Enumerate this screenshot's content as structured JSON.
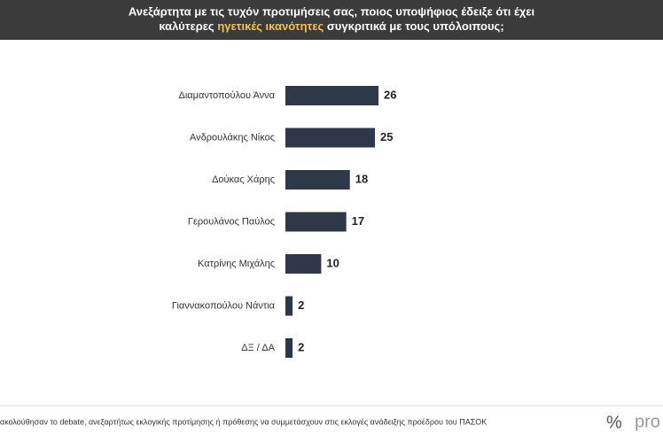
{
  "chart_data": {
    "type": "bar",
    "title": {
      "line1": "Ανεξάρτητα με τις τυχόν προτιμήσεις σας, ποιος υποψήφιος έδειξε ότι έχει",
      "before": "καλύτερες",
      "highlight": "ηγετικές ικανότητες",
      "after": "συγκριτικά με τους υπόλοιπους;"
    },
    "categories": [
      "Διαμαντοπούλου Άννα",
      "Ανδρουλάκης Νίκος",
      "Δούκας Χάρης",
      "Γερουλάνος Παύλος",
      "Κατρίνης Μιχάλης",
      "Γιαννακοπούλου Νάντια",
      "ΔΞ / ΔΑ"
    ],
    "values": [
      26,
      25,
      18,
      17,
      10,
      2,
      2
    ],
    "color": "#2f3848",
    "footnote": "ακολούθησαν το debate, ανεξαρτήτως εκλογικής προτίμησης ή πρόθεσης να συμμετάσχουν στις εκλογές ανάδειξης προέδρου του ΠΑΣΟΚ",
    "logo_symbol": "%",
    "logo_text": "pro"
  }
}
